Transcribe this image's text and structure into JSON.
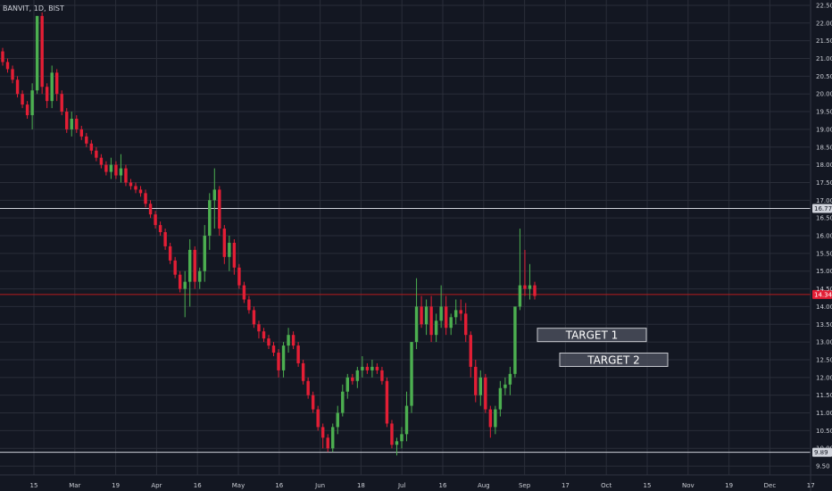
{
  "header": {
    "symbol": "BANVIT, 1D, BIST"
  },
  "colors": {
    "background": "#131722",
    "grid": "#2a2e39",
    "up": "#4caf50",
    "down": "#e31e35",
    "hline": "#d1d4dc",
    "current_price_line": "#b71c1c"
  },
  "chart_data": {
    "type": "candlestick",
    "title": "BANVIT, 1D, BIST",
    "y_range": [
      9.25,
      22.65
    ],
    "y_ticks": [
      "9.50",
      "10.00",
      "10.50",
      "11.00",
      "11.50",
      "12.00",
      "12.50",
      "13.00",
      "13.50",
      "14.00",
      "14.50",
      "15.00",
      "15.50",
      "16.00",
      "16.50",
      "17.00",
      "17.50",
      "18.00",
      "18.50",
      "19.00",
      "19.50",
      "20.00",
      "20.50",
      "21.00",
      "21.50",
      "22.00",
      "22.50"
    ],
    "x_ticks": [
      "15",
      "Mar",
      "19",
      "Apr",
      "16",
      "May",
      "16",
      "Jun",
      "18",
      "Jul",
      "16",
      "Aug",
      "Sep",
      "17",
      "Oct",
      "15",
      "Nov",
      "19",
      "Dec",
      "17"
    ],
    "horizontal_lines": [
      {
        "price": 16.77,
        "label": "16.77"
      },
      {
        "price": 9.89,
        "label": "9.89"
      }
    ],
    "current_price": {
      "price": 14.34,
      "label": "14.34"
    },
    "candles": [
      [
        21.2,
        21.3,
        20.8,
        20.9
      ],
      [
        20.9,
        21.0,
        20.6,
        20.7
      ],
      [
        20.7,
        20.8,
        20.3,
        20.4
      ],
      [
        20.4,
        20.5,
        19.9,
        20.0
      ],
      [
        20.0,
        20.1,
        19.6,
        19.7
      ],
      [
        19.7,
        19.8,
        19.3,
        19.4
      ],
      [
        19.4,
        20.3,
        19.0,
        20.1
      ],
      [
        20.1,
        22.2,
        20.0,
        22.2
      ],
      [
        22.2,
        22.3,
        20.0,
        20.2
      ],
      [
        20.2,
        20.3,
        19.6,
        19.8
      ],
      [
        19.8,
        20.8,
        19.6,
        20.6
      ],
      [
        20.6,
        20.7,
        19.8,
        20.0
      ],
      [
        20.0,
        20.1,
        19.4,
        19.5
      ],
      [
        19.5,
        19.6,
        18.9,
        19.0
      ],
      [
        19.0,
        19.5,
        18.8,
        19.3
      ],
      [
        19.3,
        19.4,
        18.9,
        19.0
      ],
      [
        19.0,
        19.1,
        18.7,
        18.8
      ],
      [
        18.8,
        18.9,
        18.5,
        18.6
      ],
      [
        18.6,
        18.7,
        18.3,
        18.4
      ],
      [
        18.4,
        18.5,
        18.1,
        18.2
      ],
      [
        18.2,
        18.3,
        17.9,
        18.0
      ],
      [
        18.0,
        18.1,
        17.7,
        17.8
      ],
      [
        17.8,
        18.2,
        17.6,
        18.0
      ],
      [
        18.0,
        18.1,
        17.6,
        17.7
      ],
      [
        17.7,
        18.3,
        17.5,
        17.9
      ],
      [
        17.9,
        18.0,
        17.4,
        17.5
      ],
      [
        17.5,
        17.6,
        17.3,
        17.4
      ],
      [
        17.4,
        17.5,
        17.2,
        17.3
      ],
      [
        17.3,
        17.4,
        17.1,
        17.2
      ],
      [
        17.2,
        17.3,
        16.8,
        16.9
      ],
      [
        16.9,
        17.0,
        16.5,
        16.6
      ],
      [
        16.6,
        16.7,
        16.2,
        16.3
      ],
      [
        16.3,
        16.4,
        16.0,
        16.1
      ],
      [
        16.1,
        16.2,
        15.6,
        15.7
      ],
      [
        15.7,
        15.8,
        15.2,
        15.3
      ],
      [
        15.3,
        15.4,
        14.8,
        14.9
      ],
      [
        14.9,
        15.0,
        14.4,
        14.5
      ],
      [
        14.5,
        15.0,
        13.7,
        14.7
      ],
      [
        14.7,
        15.9,
        14.0,
        15.6
      ],
      [
        15.6,
        15.7,
        14.5,
        14.7
      ],
      [
        14.7,
        15.1,
        14.5,
        15.0
      ],
      [
        15.0,
        16.3,
        14.7,
        16.0
      ],
      [
        16.0,
        17.2,
        15.6,
        17.0
      ],
      [
        17.0,
        17.9,
        16.2,
        17.3
      ],
      [
        17.3,
        17.4,
        16.0,
        16.2
      ],
      [
        16.2,
        16.3,
        15.2,
        15.4
      ],
      [
        15.4,
        16.0,
        15.0,
        15.8
      ],
      [
        15.8,
        15.9,
        14.9,
        15.1
      ],
      [
        15.1,
        15.2,
        14.5,
        14.6
      ],
      [
        14.6,
        14.7,
        14.1,
        14.2
      ],
      [
        14.2,
        14.3,
        13.8,
        13.9
      ],
      [
        13.9,
        14.0,
        13.4,
        13.5
      ],
      [
        13.5,
        13.6,
        13.1,
        13.3
      ],
      [
        13.3,
        13.4,
        13.0,
        13.1
      ],
      [
        13.1,
        13.2,
        12.8,
        12.9
      ],
      [
        12.9,
        13.0,
        12.6,
        12.7
      ],
      [
        12.7,
        12.8,
        12.0,
        12.2
      ],
      [
        12.2,
        13.0,
        12.0,
        12.9
      ],
      [
        12.9,
        13.4,
        12.7,
        13.2
      ],
      [
        13.2,
        13.3,
        12.8,
        12.9
      ],
      [
        12.9,
        13.0,
        12.3,
        12.4
      ],
      [
        12.4,
        12.5,
        11.8,
        11.9
      ],
      [
        11.9,
        12.0,
        11.4,
        11.5
      ],
      [
        11.5,
        11.6,
        11.0,
        11.1
      ],
      [
        11.1,
        11.2,
        10.5,
        10.6
      ],
      [
        10.6,
        10.7,
        10.0,
        10.3
      ],
      [
        10.3,
        10.4,
        9.9,
        10.0
      ],
      [
        10.0,
        10.7,
        9.9,
        10.6
      ],
      [
        10.6,
        11.2,
        10.4,
        11.0
      ],
      [
        11.0,
        11.8,
        10.9,
        11.6
      ],
      [
        11.6,
        12.1,
        11.4,
        12.0
      ],
      [
        12.0,
        12.1,
        11.8,
        11.9
      ],
      [
        11.9,
        12.3,
        11.7,
        12.2
      ],
      [
        12.2,
        12.6,
        12.0,
        12.3
      ],
      [
        12.3,
        12.4,
        12.1,
        12.2
      ],
      [
        12.2,
        12.5,
        12.0,
        12.3
      ],
      [
        12.3,
        12.4,
        12.1,
        12.2
      ],
      [
        12.2,
        12.3,
        11.8,
        11.9
      ],
      [
        11.9,
        12.0,
        10.6,
        10.7
      ],
      [
        10.7,
        10.8,
        10.0,
        10.1
      ],
      [
        10.1,
        10.3,
        9.8,
        10.2
      ],
      [
        10.2,
        10.6,
        10.0,
        10.4
      ],
      [
        10.4,
        11.6,
        10.2,
        11.2
      ],
      [
        11.2,
        13.0,
        11.0,
        13.0
      ],
      [
        13.0,
        14.8,
        12.8,
        14.0
      ],
      [
        14.0,
        14.3,
        13.4,
        13.5
      ],
      [
        13.5,
        14.2,
        13.2,
        14.0
      ],
      [
        14.0,
        14.3,
        13.0,
        13.2
      ],
      [
        13.2,
        13.8,
        13.0,
        13.6
      ],
      [
        13.6,
        14.6,
        13.4,
        14.0
      ],
      [
        14.0,
        14.3,
        13.2,
        13.4
      ],
      [
        13.4,
        13.8,
        13.2,
        13.7
      ],
      [
        13.7,
        14.2,
        13.5,
        13.9
      ],
      [
        13.9,
        14.2,
        13.6,
        13.8
      ],
      [
        13.8,
        14.1,
        13.0,
        13.2
      ],
      [
        13.2,
        13.3,
        12.0,
        12.3
      ],
      [
        12.3,
        12.5,
        11.3,
        11.5
      ],
      [
        11.5,
        12.2,
        11.2,
        12.0
      ],
      [
        12.0,
        12.1,
        11.0,
        11.1
      ],
      [
        11.1,
        11.2,
        10.3,
        10.6
      ],
      [
        10.6,
        11.2,
        10.4,
        11.1
      ],
      [
        11.1,
        11.9,
        10.9,
        11.7
      ],
      [
        11.7,
        12.0,
        11.5,
        11.8
      ],
      [
        11.8,
        12.3,
        11.5,
        12.1
      ],
      [
        12.1,
        14.0,
        12.0,
        14.0
      ],
      [
        14.0,
        16.2,
        13.9,
        14.6
      ],
      [
        14.6,
        15.6,
        14.3,
        14.5
      ],
      [
        14.5,
        15.2,
        14.2,
        14.6
      ],
      [
        14.6,
        14.7,
        14.2,
        14.3
      ]
    ],
    "annotations": [
      {
        "label": "TARGET 1",
        "price": 13.2
      },
      {
        "label": "TARGET 2",
        "price": 12.5
      }
    ]
  }
}
